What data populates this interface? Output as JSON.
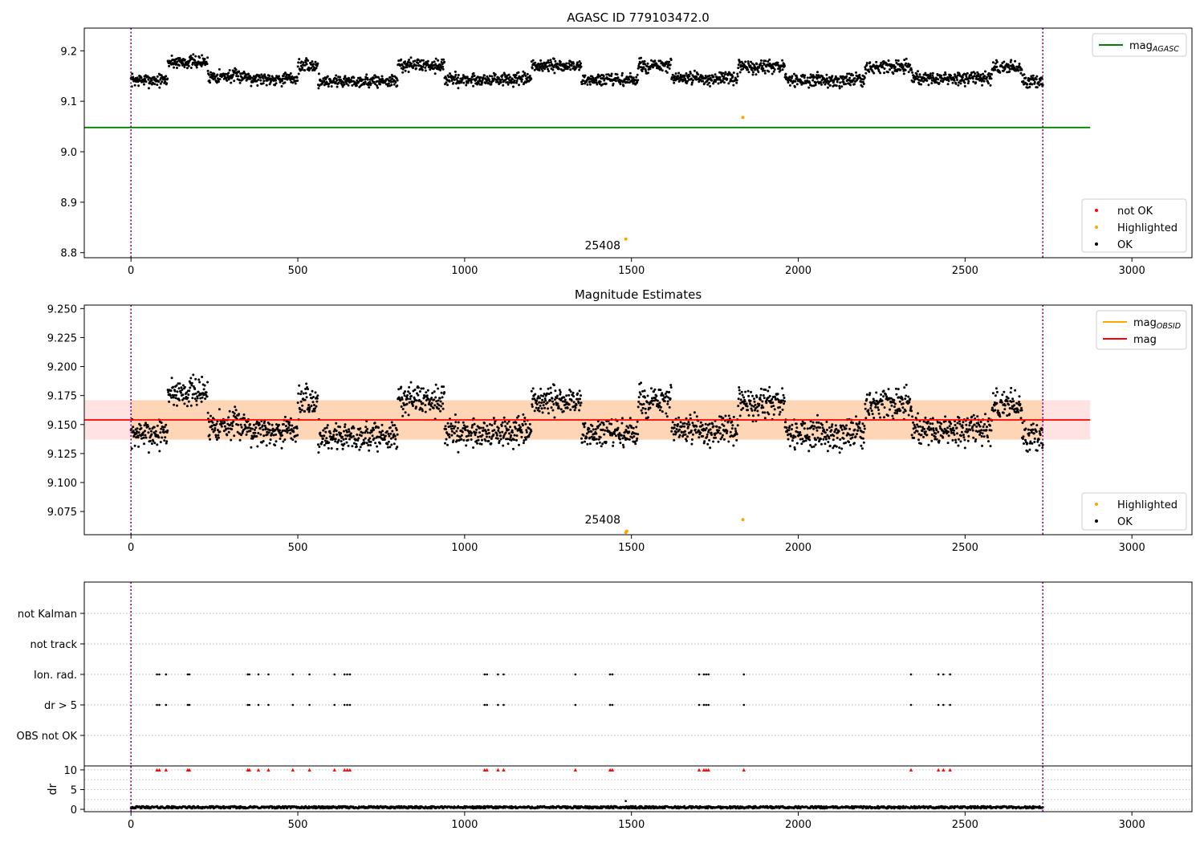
{
  "chart_data": [
    {
      "type": "scatter",
      "title": "AGASC ID 779103472.0",
      "xlim": [
        -140,
        3180
      ],
      "ylim": [
        8.79,
        9.245
      ],
      "xticks": [
        0,
        500,
        1000,
        1500,
        2000,
        2500,
        3000
      ],
      "yticks": [
        8.8,
        8.9,
        9.0,
        9.1,
        9.2
      ],
      "ytick_decimals": 1,
      "vlines": [
        0,
        2733
      ],
      "hlines": [
        {
          "name": "mag",
          "sub": "AGASC",
          "y": 9.048,
          "x0": -140,
          "x1": 2875,
          "color": "#008000"
        }
      ],
      "segments": [
        {
          "x0": 0,
          "x1": 110,
          "y": 9.142
        },
        {
          "x0": 110,
          "x1": 230,
          "y": 9.178
        },
        {
          "x0": 230,
          "x1": 360,
          "y": 9.15
        },
        {
          "x0": 360,
          "x1": 500,
          "y": 9.145
        },
        {
          "x0": 500,
          "x1": 560,
          "y": 9.17
        },
        {
          "x0": 560,
          "x1": 800,
          "y": 9.14
        },
        {
          "x0": 800,
          "x1": 940,
          "y": 9.172
        },
        {
          "x0": 940,
          "x1": 1200,
          "y": 9.143
        },
        {
          "x0": 1200,
          "x1": 1350,
          "y": 9.17
        },
        {
          "x0": 1350,
          "x1": 1520,
          "y": 9.142
        },
        {
          "x0": 1520,
          "x1": 1620,
          "y": 9.17
        },
        {
          "x0": 1620,
          "x1": 1820,
          "y": 9.145
        },
        {
          "x0": 1820,
          "x1": 1960,
          "y": 9.168
        },
        {
          "x0": 1960,
          "x1": 2200,
          "y": 9.142
        },
        {
          "x0": 2200,
          "x1": 2340,
          "y": 9.168
        },
        {
          "x0": 2340,
          "x1": 2580,
          "y": 9.145
        },
        {
          "x0": 2580,
          "x1": 2670,
          "y": 9.168
        },
        {
          "x0": 2670,
          "x1": 2733,
          "y": 9.14
        }
      ],
      "noise": 0.012,
      "highlighted": [
        {
          "x": 1483,
          "y": 8.827
        },
        {
          "x": 1834,
          "y": 9.068
        }
      ],
      "obsid_label": {
        "x": 1360,
        "y": 8.81,
        "text": "25408"
      },
      "legends": [
        {
          "position": "top-right",
          "entries": [
            {
              "label": "mag",
              "sub": "AGASC",
              "kind": "line",
              "color": "#008000"
            }
          ]
        },
        {
          "position": "bottom-right",
          "entries": [
            {
              "label": "not OK",
              "kind": "dot",
              "color": "#ff0000"
            },
            {
              "label": "Highlighted",
              "kind": "dot",
              "color": "#ffa500"
            },
            {
              "label": "OK",
              "kind": "dot",
              "color": "#000000"
            }
          ]
        }
      ]
    },
    {
      "type": "scatter",
      "title": "Magnitude Estimates",
      "xlim": [
        -140,
        3180
      ],
      "ylim": [
        9.055,
        9.253
      ],
      "xticks": [
        0,
        500,
        1000,
        1500,
        2000,
        2500,
        3000
      ],
      "yticks": [
        9.075,
        9.1,
        9.125,
        9.15,
        9.175,
        9.2,
        9.225,
        9.25
      ],
      "ytick_decimals": 3,
      "vlines": [
        0,
        2733
      ],
      "band": {
        "y0": 9.137,
        "y1": 9.171,
        "x0": -140,
        "x1": 2875,
        "inner_x1": 2733
      },
      "hlines": [
        {
          "name": "mag",
          "y": 9.154,
          "x0": -140,
          "x1": 2875,
          "color": "#ff0000"
        }
      ],
      "segments": [
        {
          "x0": 0,
          "x1": 110,
          "y": 9.142
        },
        {
          "x0": 110,
          "x1": 230,
          "y": 9.178
        },
        {
          "x0": 230,
          "x1": 360,
          "y": 9.15
        },
        {
          "x0": 360,
          "x1": 500,
          "y": 9.145
        },
        {
          "x0": 500,
          "x1": 560,
          "y": 9.17
        },
        {
          "x0": 560,
          "x1": 800,
          "y": 9.14
        },
        {
          "x0": 800,
          "x1": 940,
          "y": 9.172
        },
        {
          "x0": 940,
          "x1": 1200,
          "y": 9.143
        },
        {
          "x0": 1200,
          "x1": 1350,
          "y": 9.17
        },
        {
          "x0": 1350,
          "x1": 1520,
          "y": 9.142
        },
        {
          "x0": 1520,
          "x1": 1620,
          "y": 9.17
        },
        {
          "x0": 1620,
          "x1": 1820,
          "y": 9.145
        },
        {
          "x0": 1820,
          "x1": 1960,
          "y": 9.168
        },
        {
          "x0": 1960,
          "x1": 2200,
          "y": 9.142
        },
        {
          "x0": 2200,
          "x1": 2340,
          "y": 9.168
        },
        {
          "x0": 2340,
          "x1": 2580,
          "y": 9.145
        },
        {
          "x0": 2580,
          "x1": 2670,
          "y": 9.168
        },
        {
          "x0": 2670,
          "x1": 2733,
          "y": 9.14
        }
      ],
      "noise": 0.012,
      "highlighted": [
        {
          "x": 1483,
          "y": 9.057
        },
        {
          "x": 1486,
          "y": 9.058
        },
        {
          "x": 1834,
          "y": 9.068
        }
      ],
      "obsid_label": {
        "x": 1360,
        "y": 9.066,
        "text": "25408"
      },
      "legends": [
        {
          "position": "top-right",
          "entries": [
            {
              "label": "mag",
              "sub": "OBSID",
              "kind": "line",
              "color": "#ffa500"
            },
            {
              "label": "mag",
              "kind": "line",
              "color": "#ff0000"
            }
          ]
        },
        {
          "position": "bottom-right",
          "entries": [
            {
              "label": "Highlighted",
              "kind": "dot",
              "color": "#ffa500"
            },
            {
              "label": "OK",
              "kind": "dot",
              "color": "#000000"
            }
          ]
        }
      ]
    },
    {
      "type": "scatter",
      "xlim": [
        -140,
        3180
      ],
      "xticks": [
        0,
        500,
        1000,
        1500,
        2000,
        2500,
        3000
      ],
      "vlines": [
        0,
        2733
      ],
      "flags": [
        "not Kalman",
        "not track",
        "Ion. rad.",
        "dr > 5",
        "OBS not OK"
      ],
      "flag_times": [
        78,
        85,
        105,
        170,
        175,
        350,
        355,
        382,
        412,
        485,
        535,
        610,
        640,
        648,
        656,
        1060,
        1067,
        1100,
        1117,
        1332,
        1436,
        1443,
        1703,
        1717,
        1724,
        1731,
        1837,
        2338,
        2420,
        2435,
        2455
      ],
      "flagged_rows": [
        "Ion. rad.",
        "dr > 5"
      ],
      "dr": {
        "ylabel": "dr",
        "ylim": [
          -0.6,
          11
        ],
        "yticks": [
          0,
          5,
          10
        ],
        "clip": 10,
        "baseline": 0.4,
        "outliers": [
          {
            "x": 1483,
            "y": 2.1
          }
        ],
        "clipped_color": "#ff0000"
      }
    }
  ]
}
